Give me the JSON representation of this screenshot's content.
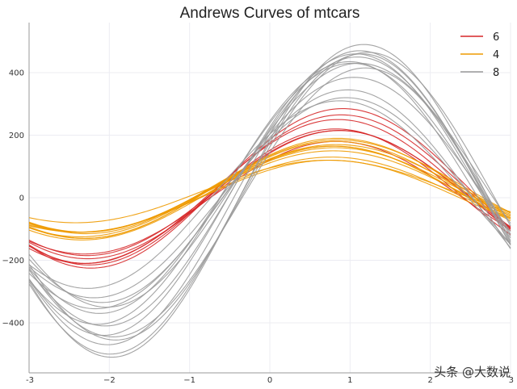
{
  "chart_data": {
    "type": "line",
    "title": "Andrews Curves of mtcars",
    "xlabel": "",
    "ylabel": "",
    "xlim": [
      -3,
      3
    ],
    "ylim": [
      -560,
      560
    ],
    "x_ticks": [
      -3,
      -2,
      -1,
      0,
      1,
      2,
      3
    ],
    "y_ticks": [
      -400,
      -200,
      0,
      200,
      400
    ],
    "x_tick_labels": [
      "-3",
      "−2",
      "−1",
      "0",
      "1",
      "2",
      "3"
    ],
    "y_tick_labels": [
      "−400",
      "−200",
      "0",
      "200",
      "400"
    ],
    "grid": true,
    "legend_position": "top-right",
    "legend": [
      {
        "label": "6",
        "color": "#d62728"
      },
      {
        "label": "4",
        "color": "#ee9a00"
      },
      {
        "label": "8",
        "color": "#9a9a9a"
      }
    ],
    "curve_form": "y(t) = a + b*sin(t + phase)",
    "series": [
      {
        "name": "6",
        "color": "#d62728",
        "curves": [
          {
            "a": 15,
            "b": 200,
            "phase": 0.71
          },
          {
            "a": 10,
            "b": 205,
            "phase": 0.7
          },
          {
            "a": 5,
            "b": 215,
            "phase": 0.75
          },
          {
            "a": 20,
            "b": 230,
            "phase": 0.72
          },
          {
            "a": 25,
            "b": 240,
            "phase": 0.68
          },
          {
            "a": 30,
            "b": 255,
            "phase": 0.66
          },
          {
            "a": 0,
            "b": 180,
            "phase": 0.74
          }
        ]
      },
      {
        "name": "4",
        "color": "#ee9a00",
        "curves": [
          {
            "a": 20,
            "b": 130,
            "phase": 0.78
          },
          {
            "a": 25,
            "b": 135,
            "phase": 0.76
          },
          {
            "a": 30,
            "b": 140,
            "phase": 0.74
          },
          {
            "a": 20,
            "b": 145,
            "phase": 0.79
          },
          {
            "a": 15,
            "b": 150,
            "phase": 0.77
          },
          {
            "a": 25,
            "b": 155,
            "phase": 0.75
          },
          {
            "a": 10,
            "b": 120,
            "phase": 0.8
          },
          {
            "a": 5,
            "b": 115,
            "phase": 0.82
          },
          {
            "a": 35,
            "b": 150,
            "phase": 0.72
          },
          {
            "a": 20,
            "b": 100,
            "phase": 0.85
          },
          {
            "a": 30,
            "b": 160,
            "phase": 0.73
          }
        ]
      },
      {
        "name": "8",
        "color": "#9a9a9a",
        "curves": [
          {
            "a": 0,
            "b": 470,
            "phase": 0.45
          },
          {
            "a": -10,
            "b": 500,
            "phase": 0.4
          },
          {
            "a": 10,
            "b": 450,
            "phase": 0.5
          },
          {
            "a": 20,
            "b": 430,
            "phase": 0.48
          },
          {
            "a": -20,
            "b": 480,
            "phase": 0.42
          },
          {
            "a": 15,
            "b": 420,
            "phase": 0.58
          },
          {
            "a": 30,
            "b": 400,
            "phase": 0.55
          },
          {
            "a": -5,
            "b": 350,
            "phase": 0.6
          },
          {
            "a": 25,
            "b": 360,
            "phase": 0.52
          },
          {
            "a": 0,
            "b": 320,
            "phase": 0.62
          },
          {
            "a": 5,
            "b": 460,
            "phase": 0.35
          },
          {
            "a": -15,
            "b": 430,
            "phase": 0.38
          },
          {
            "a": 40,
            "b": 390,
            "phase": 0.46
          },
          {
            "a": 10,
            "b": 300,
            "phase": 0.7
          }
        ]
      }
    ]
  },
  "watermark": "头条 @大数说"
}
